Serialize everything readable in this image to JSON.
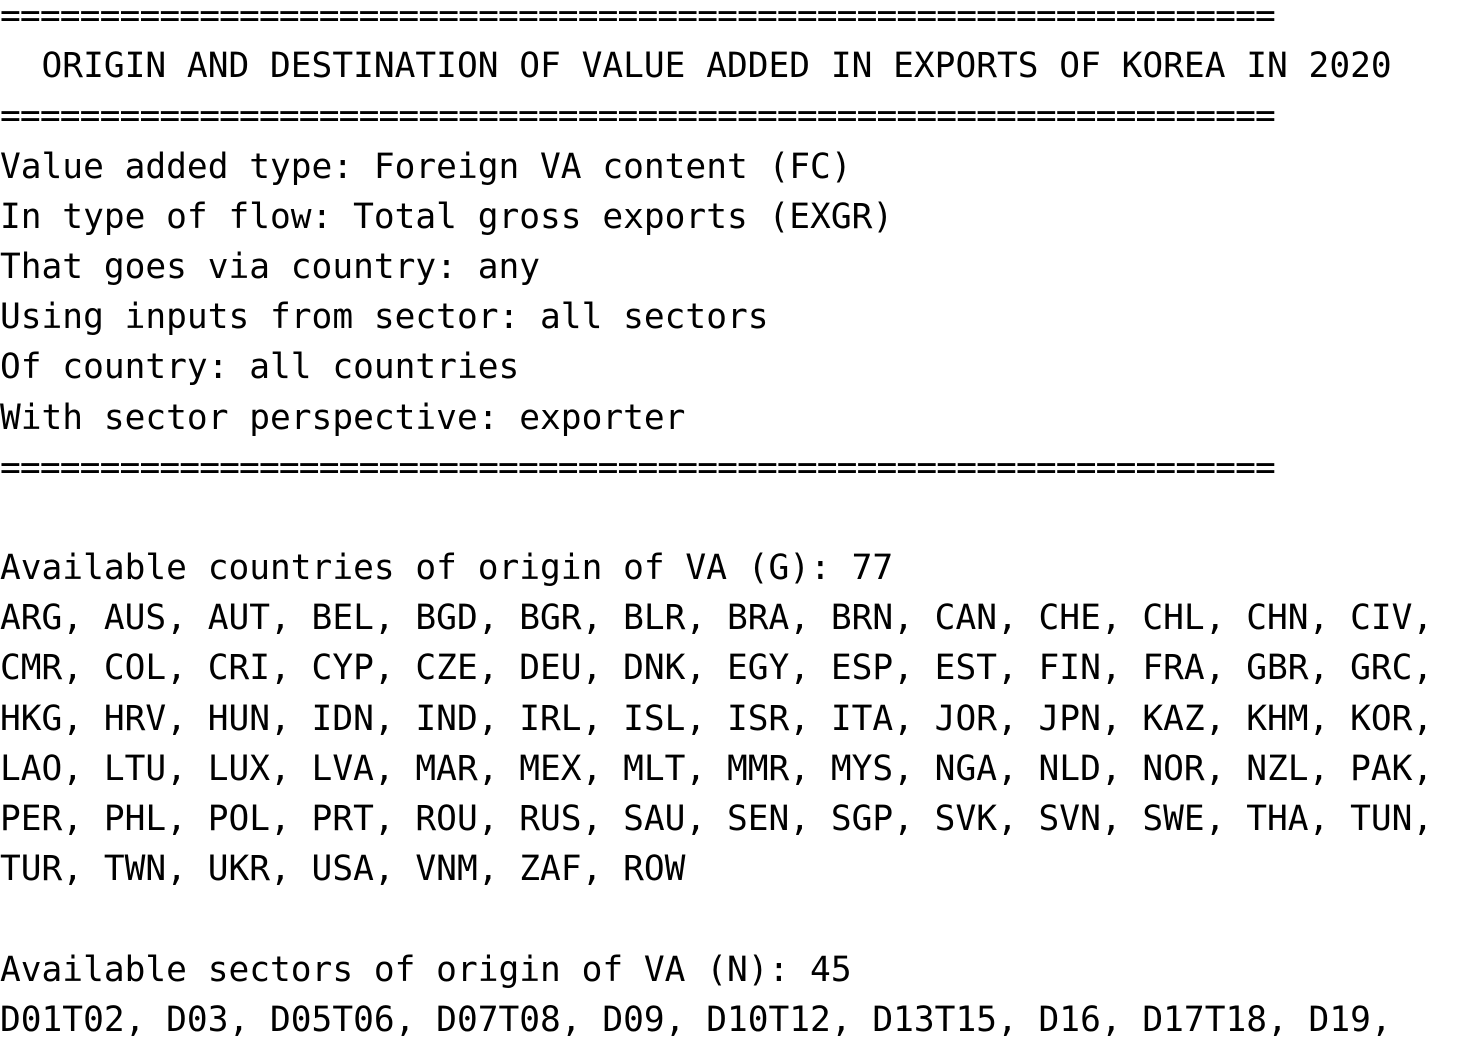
{
  "report": {
    "rule": "================================================================",
    "title": "  ORIGIN AND DESTINATION OF VALUE ADDED IN EXPORTS OF KOREA IN 2020",
    "params": [
      "Value added type: Foreign VA content (FC)",
      "In type of flow: Total gross exports (EXGR)",
      "That goes via country: any",
      "Using inputs from sector: all sectors",
      "Of country: all countries",
      "With sector perspective: exporter"
    ],
    "countries": {
      "header": "Available countries of origin of VA (G): 77",
      "lines": [
        "ARG, AUS, AUT, BEL, BGD, BGR, BLR, BRA, BRN, CAN, CHE, CHL, CHN, CIV,",
        "CMR, COL, CRI, CYP, CZE, DEU, DNK, EGY, ESP, EST, FIN, FRA, GBR, GRC,",
        "HKG, HRV, HUN, IDN, IND, IRL, ISL, ISR, ITA, JOR, JPN, KAZ, KHM, KOR,",
        "LAO, LTU, LUX, LVA, MAR, MEX, MLT, MMR, MYS, NGA, NLD, NOR, NZL, PAK,",
        "PER, PHL, POL, PRT, ROU, RUS, SAU, SEN, SGP, SVK, SVN, SWE, THA, TUN,",
        "TUR, TWN, UKR, USA, VNM, ZAF, ROW"
      ]
    },
    "sectors": {
      "header": "Available sectors of origin of VA (N): 45",
      "lines": [
        "D01T02, D03, D05T06, D07T08, D09, D10T12, D13T15, D16, D17T18, D19,"
      ]
    }
  }
}
